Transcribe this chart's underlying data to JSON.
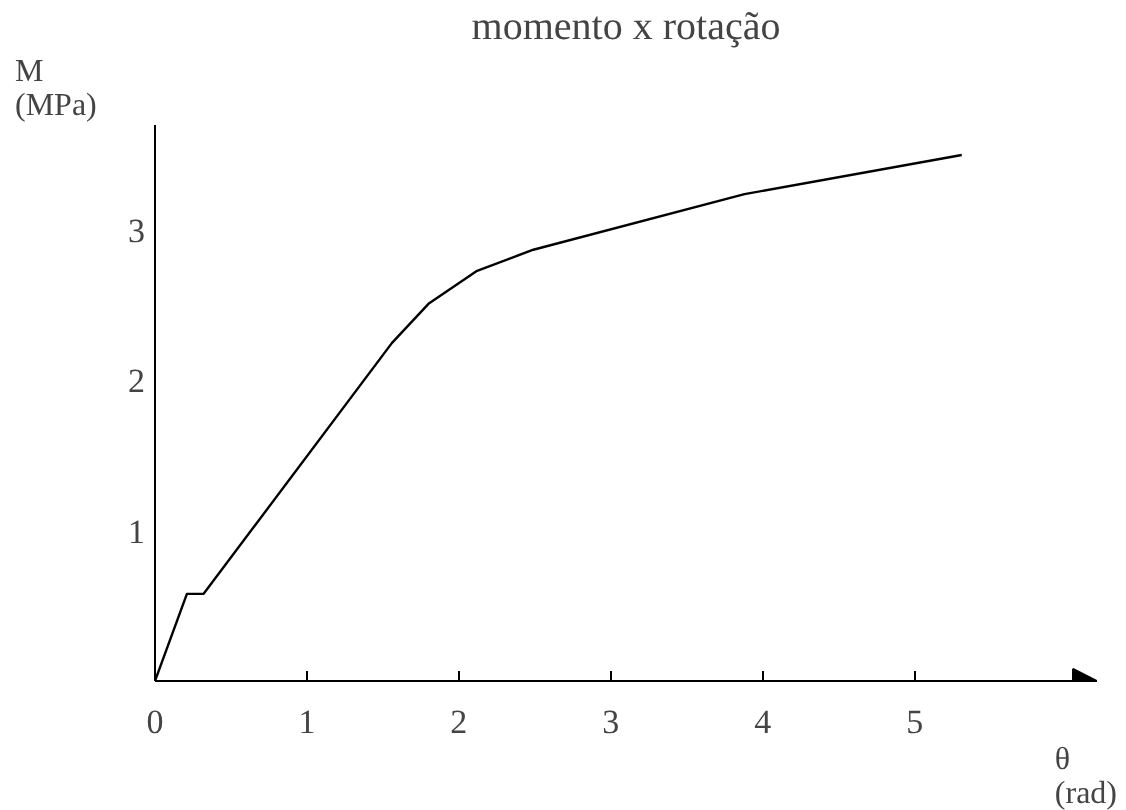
{
  "chart_data": {
    "type": "line",
    "title": "momento x rotação",
    "xlabel": "θ\n(rad)",
    "ylabel": "M\n(MPa)",
    "x": [
      0,
      0.21,
      0.32,
      1.56,
      1.8,
      2.12,
      2.49,
      3.88,
      5.31
    ],
    "series": [
      {
        "color": "#000000",
        "values": [
          0,
          0.58,
          0.58,
          2.25,
          2.51,
          2.73,
          2.87,
          3.24,
          3.5
        ]
      }
    ],
    "xlim": [
      0,
      6.2
    ],
    "ylim": [
      0,
      3.7
    ],
    "xticks": [
      0,
      1,
      2,
      3,
      4,
      5
    ],
    "yticks": [
      1,
      2,
      3
    ],
    "grid": false,
    "marker": "none",
    "line_style": "solid"
  }
}
